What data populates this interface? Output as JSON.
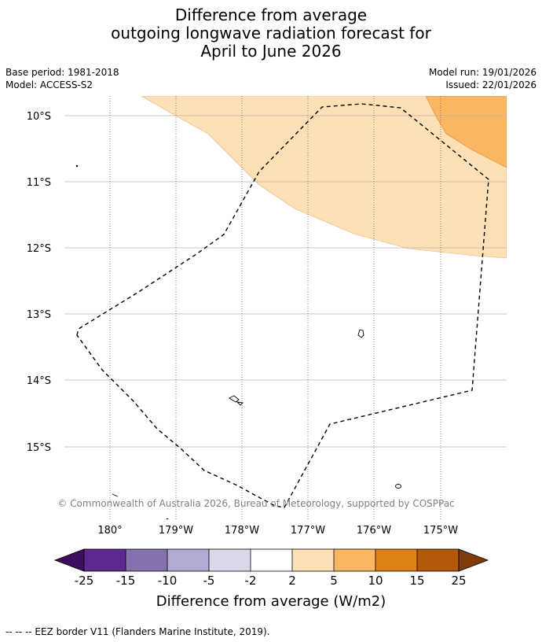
{
  "title": {
    "line1": "Difference from average",
    "line2": "outgoing longwave radiation forecast for",
    "line3": "April to June 2026"
  },
  "meta": {
    "base_period": "Base period: 1981-2018",
    "model": "Model: ACCESS-S2",
    "model_run": "Model run: 19/01/2026",
    "issued": "Issued: 22/01/2026"
  },
  "map": {
    "lat_labels": [
      "10°S",
      "11°S",
      "12°S",
      "13°S",
      "14°S",
      "15°S"
    ],
    "lon_labels": [
      "180°",
      "179°W",
      "178°W",
      "177°W",
      "176°W",
      "175°W"
    ],
    "attribution": "© Commonwealth of Australia 2026, Bureau of Meteorology, supported by COSPPac"
  },
  "colorbar": {
    "bin_colors": [
      "#3b0f5e",
      "#5c2a8e",
      "#8372ad",
      "#b2aad3",
      "#d9d9eb",
      "#ffffff",
      "#fde0b6",
      "#fbb662",
      "#e08213",
      "#b35806",
      "#7f3b08"
    ],
    "tick_labels": [
      "-25",
      "-15",
      "-10",
      "-5",
      "-2",
      "2",
      "5",
      "10",
      "15",
      "25"
    ],
    "label": "Difference from average (W/m2)"
  },
  "legend": {
    "eez_text": "--  --  -- EEZ border V11 (Flanders Marine Institute, 2019)."
  }
}
